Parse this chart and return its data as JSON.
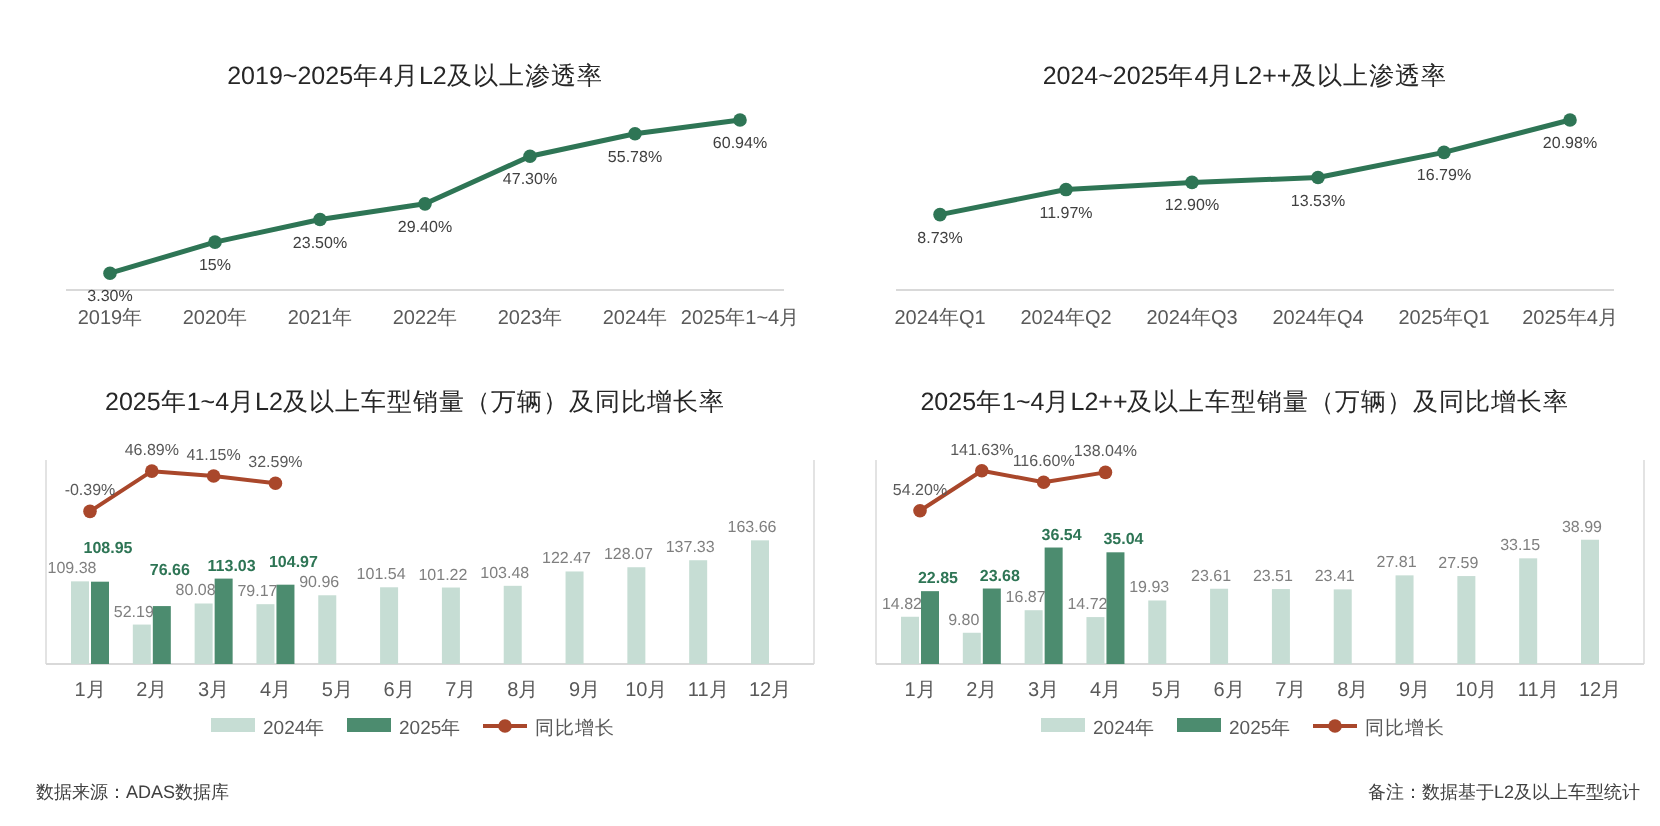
{
  "chart_data": [
    {
      "type": "line",
      "title": "2019~2025年4月L2及以上渗透率",
      "categories": [
        "2019年",
        "2020年",
        "2021年",
        "2022年",
        "2023年",
        "2024年",
        "2025年1~4月"
      ],
      "series": [
        {
          "color": "#2e7555",
          "values": [
            3.3,
            15,
            23.5,
            29.4,
            47.3,
            55.78,
            60.94
          ],
          "value_labels": [
            "3.30%",
            "15%",
            "23.50%",
            "29.40%",
            "47.30%",
            "55.78%",
            "60.94%"
          ]
        }
      ],
      "marker": "circle"
    },
    {
      "type": "line",
      "title": "2024~2025年4月L2++及以上渗透率",
      "categories": [
        "2024年Q1",
        "2024年Q2",
        "2024年Q3",
        "2024年Q4",
        "2025年Q1",
        "2025年4月"
      ],
      "series": [
        {
          "color": "#2e7555",
          "values": [
            8.73,
            11.97,
            12.9,
            13.53,
            16.79,
            20.98
          ],
          "value_labels": [
            "8.73%",
            "11.97%",
            "12.90%",
            "13.53%",
            "16.79%",
            "20.98%"
          ]
        }
      ],
      "marker": "circle"
    },
    {
      "type": "bar",
      "title": "2025年1~4月L2及以上车型销量（万辆）及同比增长率",
      "categories": [
        "1月",
        "2月",
        "3月",
        "4月",
        "5月",
        "6月",
        "7月",
        "8月",
        "9月",
        "10月",
        "11月",
        "12月"
      ],
      "series": [
        {
          "name": "2024年",
          "color": "#c6ddd4",
          "values": [
            109.38,
            52.19,
            80.08,
            79.17,
            90.96,
            101.54,
            101.22,
            103.48,
            122.47,
            128.07,
            137.33,
            163.66
          ],
          "value_labels": [
            "109.38",
            "52.19",
            "80.08",
            "79.17",
            "90.96",
            "101.54",
            "101.22",
            "103.48",
            "122.47",
            "128.07",
            "137.33",
            "163.66"
          ]
        },
        {
          "name": "2025年",
          "color": "#4c8c6f",
          "values": [
            108.95,
            76.66,
            113.03,
            104.97,
            null,
            null,
            null,
            null,
            null,
            null,
            null,
            null
          ],
          "value_labels": [
            "108.95",
            "76.66",
            "113.03",
            "104.97",
            null,
            null,
            null,
            null,
            null,
            null,
            null,
            null
          ]
        },
        {
          "name": "同比增长",
          "type": "line",
          "axis": "y2",
          "color": "#a9472b",
          "values": [
            -0.39,
            46.89,
            41.15,
            32.59,
            null,
            null,
            null,
            null,
            null,
            null,
            null,
            null
          ],
          "value_labels": [
            "-0.39%",
            "46.89%",
            "41.15%",
            "32.59%",
            null,
            null,
            null,
            null,
            null,
            null,
            null,
            null
          ]
        }
      ],
      "ylim": [
        0,
        270
      ],
      "y2lim": [
        -180,
        60
      ],
      "legend": "bottom",
      "marker": "circle",
      "annotations": [
        "数据来源：ADAS数据库"
      ]
    },
    {
      "type": "bar",
      "title": "2025年1~4月L2++及以上车型销量（万辆）及同比增长率",
      "categories": [
        "1月",
        "2月",
        "3月",
        "4月",
        "5月",
        "6月",
        "7月",
        "8月",
        "9月",
        "10月",
        "11月",
        "12月"
      ],
      "series": [
        {
          "name": "2024年",
          "color": "#c6ddd4",
          "values": [
            14.82,
            9.8,
            16.87,
            14.72,
            19.93,
            23.61,
            23.51,
            23.41,
            27.81,
            27.59,
            33.15,
            38.99
          ],
          "value_labels": [
            "14.82",
            "9.80",
            "16.87",
            "14.72",
            "19.93",
            "23.61",
            "23.51",
            "23.41",
            "27.81",
            "27.59",
            "33.15",
            "38.99"
          ]
        },
        {
          "name": "2025年",
          "color": "#4c8c6f",
          "values": [
            22.85,
            23.68,
            36.54,
            35.04,
            null,
            null,
            null,
            null,
            null,
            null,
            null,
            null
          ],
          "value_labels": [
            "22.85",
            "23.68",
            "36.54",
            "35.04",
            null,
            null,
            null,
            null,
            null,
            null,
            null,
            null
          ]
        },
        {
          "name": "同比增长",
          "type": "line",
          "axis": "y2",
          "color": "#a9472b",
          "values": [
            54.2,
            141.63,
            116.6,
            138.04,
            null,
            null,
            null,
            null,
            null,
            null,
            null,
            null
          ],
          "value_labels": [
            "54.20%",
            "141.63%",
            "116.60%",
            "138.04%",
            null,
            null,
            null,
            null,
            null,
            null,
            null,
            null
          ]
        }
      ],
      "ylim": [
        0,
        64
      ],
      "y2lim": [
        -280,
        165
      ],
      "legend": "bottom",
      "marker": "circle",
      "annotations": [
        "备注：数据基于L2及以上车型统计"
      ]
    }
  ]
}
